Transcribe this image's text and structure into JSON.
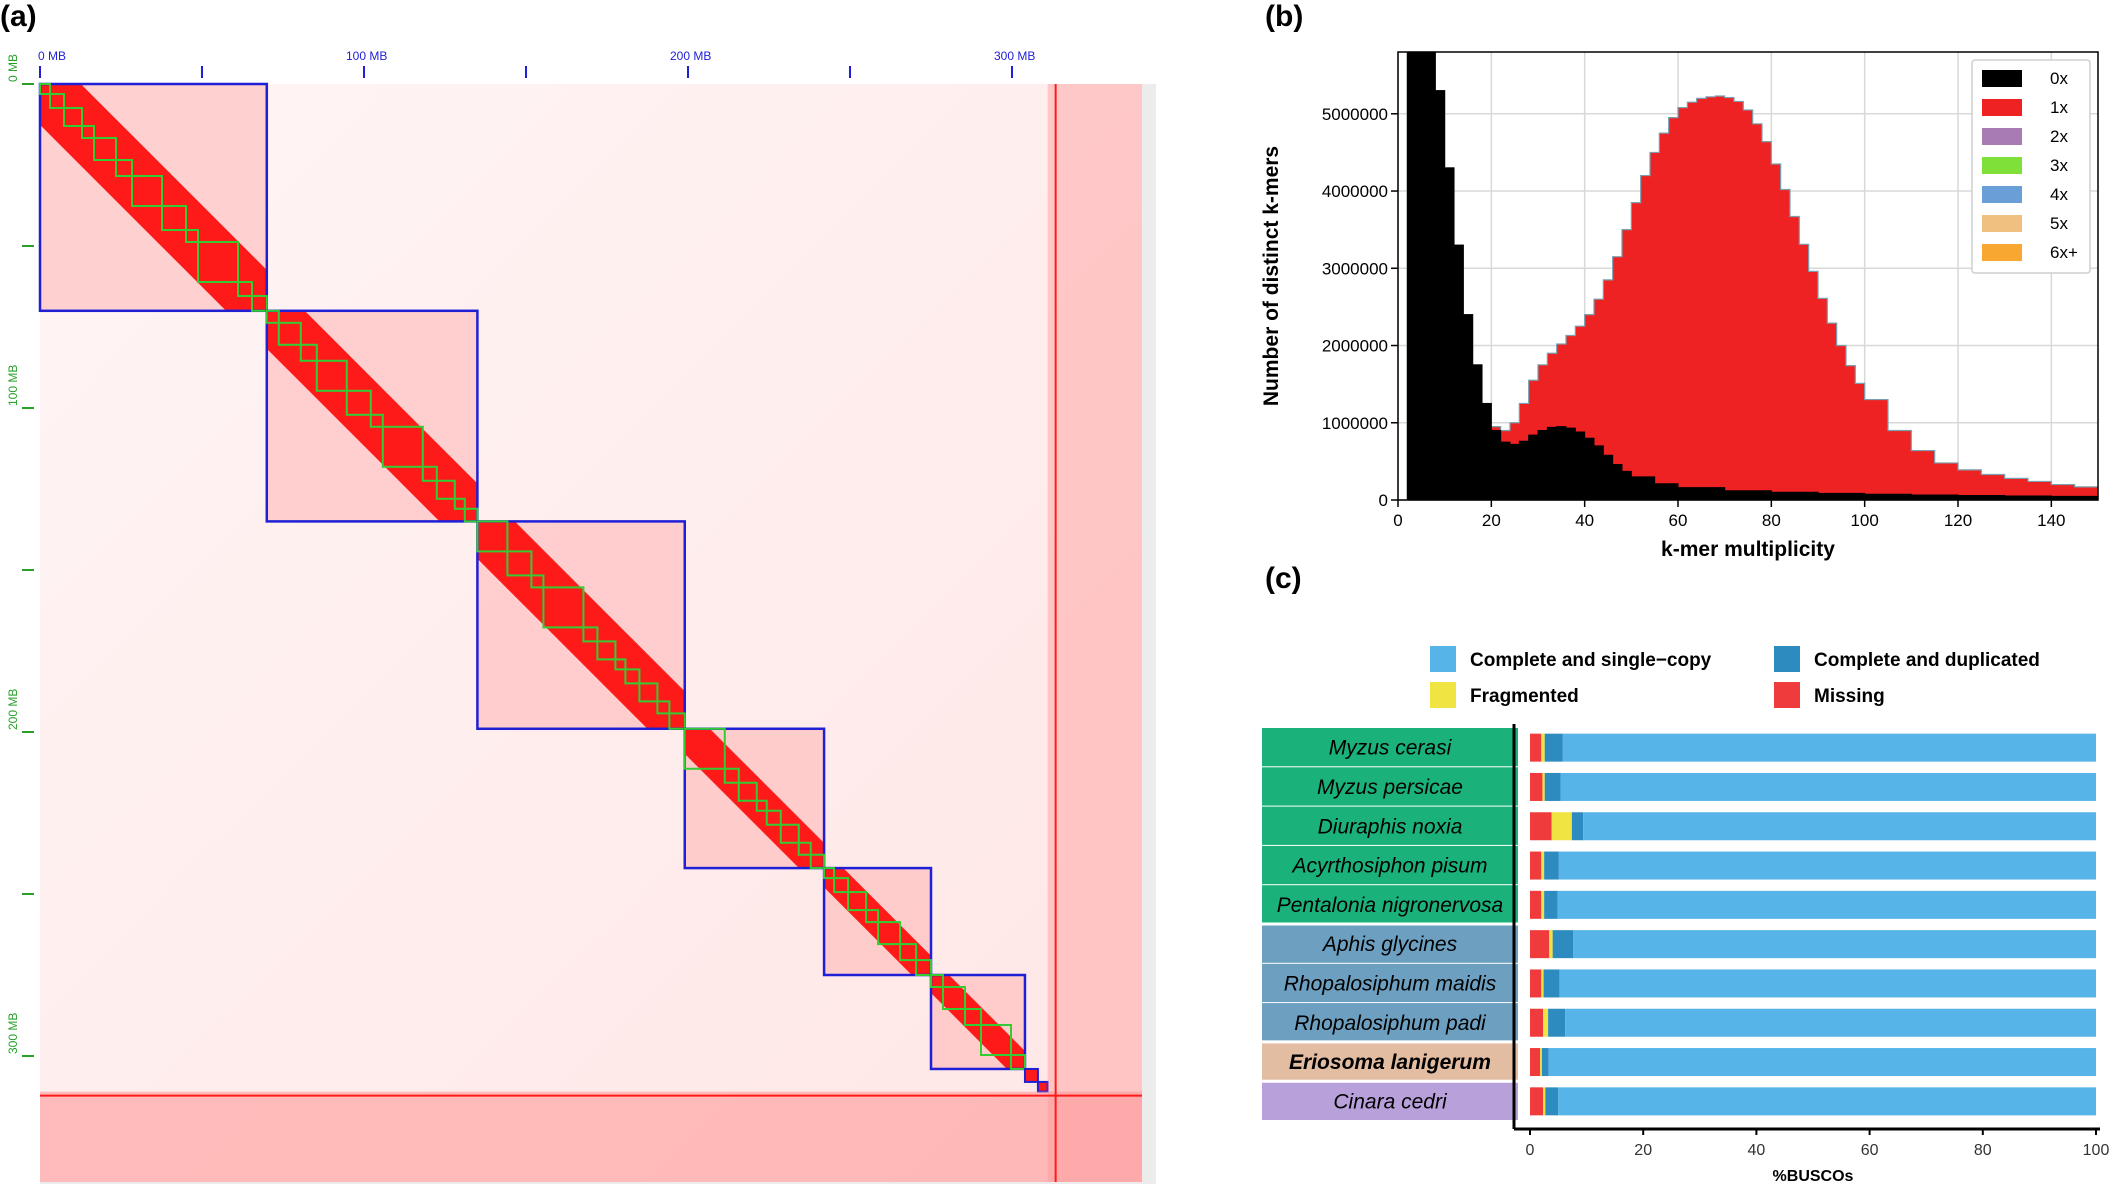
{
  "panels": {
    "a": "(a)",
    "b": "(b)",
    "c": "(c)"
  },
  "chart_data": [
    {
      "type": "heatmap",
      "panel": "(a)",
      "x_tick_labels": [
        "0 MB",
        "100 MB",
        "200 MB",
        "300 MB"
      ],
      "y_tick_labels": [
        "0 MB",
        "100 MB",
        "200 MB",
        "300 MB"
      ],
      "tick_positions_mb": [
        0,
        100,
        200,
        300
      ],
      "minor_tick_positions_mb": [
        50,
        150,
        250
      ],
      "axis_max_mb": 345,
      "chromosomes_mb": [
        [
          0,
          70
        ],
        [
          70,
          135
        ],
        [
          135,
          199
        ],
        [
          199,
          242
        ],
        [
          242,
          275
        ],
        [
          275,
          304
        ]
      ],
      "scaffolds_mb": [
        [
          304,
          308
        ],
        [
          308,
          311
        ]
      ],
      "colors": {
        "contact": "#ff1a1a",
        "chromosome_box": "#1f1fd6",
        "contig_box": "#33cc33",
        "tick_x": "#1f1fd6",
        "tick_y": "#2aa02a"
      }
    },
    {
      "type": "area",
      "panel": "(b)",
      "xlabel": "k-mer multiplicity",
      "ylabel": "Number of distinct k-mers",
      "xlim": [
        0,
        150
      ],
      "ylim": [
        0,
        5800000
      ],
      "x_ticks": [
        0,
        20,
        40,
        60,
        80,
        100,
        120,
        140
      ],
      "y_ticks": [
        0,
        1000000,
        2000000,
        3000000,
        4000000,
        5000000
      ],
      "grid": true,
      "legend_position": "top-right",
      "series": [
        {
          "name": "0x",
          "color": "#000000",
          "x": [
            2,
            4,
            6,
            8,
            10,
            12,
            14,
            16,
            18,
            20,
            22,
            24,
            26,
            28,
            30,
            32,
            34,
            36,
            38,
            40,
            42,
            44,
            46,
            48,
            50,
            55,
            60,
            70,
            80,
            90,
            100,
            110,
            120,
            130,
            140,
            150
          ],
          "y": [
            5800000,
            5800000,
            5800000,
            5300000,
            4300000,
            3300000,
            2400000,
            1750000,
            1250000,
            900000,
            750000,
            720000,
            760000,
            840000,
            900000,
            940000,
            950000,
            930000,
            880000,
            800000,
            700000,
            580000,
            460000,
            370000,
            300000,
            210000,
            160000,
            120000,
            100000,
            85000,
            75000,
            65000,
            58000,
            52000,
            47000,
            42000
          ]
        },
        {
          "name": "1x",
          "color": "#ee2222",
          "x": [
            2,
            4,
            6,
            8,
            10,
            12,
            14,
            16,
            18,
            20,
            22,
            24,
            26,
            28,
            30,
            32,
            34,
            36,
            38,
            40,
            42,
            44,
            46,
            48,
            50,
            52,
            54,
            56,
            58,
            60,
            62,
            64,
            66,
            68,
            70,
            72,
            74,
            76,
            78,
            80,
            82,
            84,
            86,
            88,
            90,
            92,
            94,
            96,
            98,
            100,
            105,
            110,
            115,
            120,
            125,
            130,
            135,
            140,
            145,
            150
          ],
          "y": [
            5800000,
            5800000,
            5800000,
            5300000,
            4300000,
            3300000,
            2400000,
            1750000,
            1250000,
            950000,
            900000,
            1000000,
            1250000,
            1550000,
            1750000,
            1900000,
            2020000,
            2130000,
            2250000,
            2400000,
            2600000,
            2850000,
            3150000,
            3500000,
            3850000,
            4200000,
            4500000,
            4750000,
            4950000,
            5080000,
            5150000,
            5200000,
            5220000,
            5230000,
            5210000,
            5160000,
            5050000,
            4870000,
            4640000,
            4350000,
            4020000,
            3670000,
            3310000,
            2960000,
            2610000,
            2290000,
            2000000,
            1740000,
            1510000,
            1300000,
            900000,
            640000,
            480000,
            390000,
            330000,
            280000,
            240000,
            200000,
            170000,
            140000
          ]
        },
        {
          "name": "2x",
          "color": "#a97bb4"
        },
        {
          "name": "3x",
          "color": "#7fe03a"
        },
        {
          "name": "4x",
          "color": "#6a9ed6"
        },
        {
          "name": "5x",
          "color": "#f0c080"
        },
        {
          "name": "6x+",
          "color": "#f8a830"
        }
      ]
    },
    {
      "type": "bar",
      "panel": "(c)",
      "orientation": "horizontal",
      "stacked": true,
      "xlabel": "%BUSCOs",
      "xlim": [
        0,
        100
      ],
      "x_ticks": [
        0,
        20,
        40,
        60,
        80,
        100
      ],
      "legend": [
        {
          "name": "Complete and single−copy",
          "color": "#56b4e9"
        },
        {
          "name": "Complete and duplicated",
          "color": "#2e8bc0"
        },
        {
          "name": "Fragmented",
          "color": "#f0e442"
        },
        {
          "name": "Missing",
          "color": "#ef3b3b"
        }
      ],
      "categories": [
        "Myzus cerasi",
        "Myzus persicae",
        "Diuraphis noxia",
        "Acyrthosiphon pisum",
        "Pentalonia nigronervosa",
        "Aphis glycines",
        "Rhopalosiphum maidis",
        "Rhopalosiphum padi",
        "Eriosoma lanigerum",
        "Cinara cedri"
      ],
      "category_group_colors": [
        "#1ab27a",
        "#1ab27a",
        "#1ab27a",
        "#1ab27a",
        "#1ab27a",
        "#6d9fc0",
        "#6d9fc0",
        "#6d9fc0",
        "#e2bda2",
        "#b8a0db"
      ],
      "series": [
        {
          "name": "Missing",
          "values": [
            2.0,
            2.2,
            3.8,
            2.0,
            2.0,
            3.4,
            2.0,
            2.3,
            1.8,
            2.3
          ]
        },
        {
          "name": "Fragmented",
          "values": [
            0.6,
            0.4,
            3.6,
            0.5,
            0.5,
            0.6,
            0.4,
            0.9,
            0.3,
            0.4
          ]
        },
        {
          "name": "Complete and duplicated",
          "values": [
            3.2,
            2.8,
            2.0,
            2.6,
            2.4,
            3.6,
            2.8,
            3.0,
            1.2,
            2.3
          ]
        },
        {
          "name": "Complete and single−copy",
          "values": [
            94.2,
            94.6,
            90.6,
            94.9,
            95.1,
            92.4,
            94.8,
            93.8,
            96.7,
            95.0
          ]
        }
      ]
    }
  ]
}
